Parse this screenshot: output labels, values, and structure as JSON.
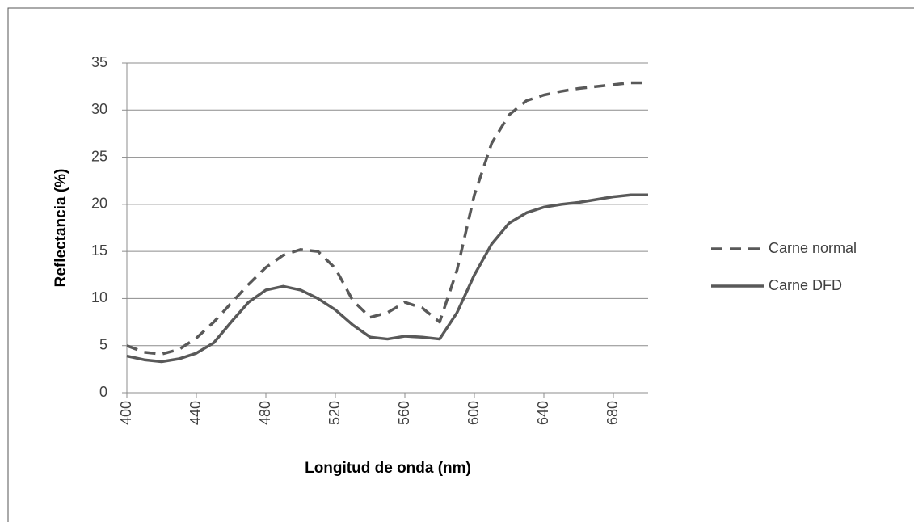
{
  "chart_data": {
    "type": "line",
    "xlabel": "Longitud de onda (nm)",
    "ylabel": "Reflectancia (%)",
    "x": [
      400,
      410,
      420,
      430,
      440,
      450,
      460,
      470,
      480,
      490,
      500,
      510,
      520,
      530,
      540,
      550,
      560,
      570,
      580,
      590,
      600,
      610,
      620,
      630,
      640,
      650,
      660,
      670,
      680,
      690,
      700
    ],
    "series": [
      {
        "name": "Carne normal",
        "color": "#595959",
        "linestyle": "dashed",
        "values": [
          5.0,
          4.3,
          4.1,
          4.6,
          5.8,
          7.5,
          9.5,
          11.5,
          13.3,
          14.6,
          15.2,
          15.0,
          13.2,
          9.8,
          8.0,
          8.5,
          9.6,
          9.0,
          7.5,
          13,
          21,
          26.5,
          29.5,
          31.0,
          31.6,
          32.0,
          32.3,
          32.5,
          32.7,
          32.9,
          32.9
        ]
      },
      {
        "name": "Carne DFD",
        "color": "#595959",
        "linestyle": "solid",
        "values": [
          3.9,
          3.5,
          3.3,
          3.6,
          4.2,
          5.3,
          7.5,
          9.6,
          10.9,
          11.3,
          10.9,
          10.0,
          8.8,
          7.2,
          5.9,
          5.7,
          6.0,
          5.9,
          5.7,
          8.5,
          12.5,
          15.8,
          18.0,
          19.1,
          19.7,
          20.0,
          20.2,
          20.5,
          20.8,
          21.0,
          21.0
        ]
      }
    ],
    "xlim": [
      400,
      700
    ],
    "xticks": [
      400,
      440,
      480,
      520,
      560,
      600,
      640,
      680
    ],
    "ylim": [
      0,
      35
    ],
    "yticks": [
      0,
      5,
      10,
      15,
      20,
      25,
      30,
      35
    ],
    "grid": true,
    "legend": "right"
  }
}
